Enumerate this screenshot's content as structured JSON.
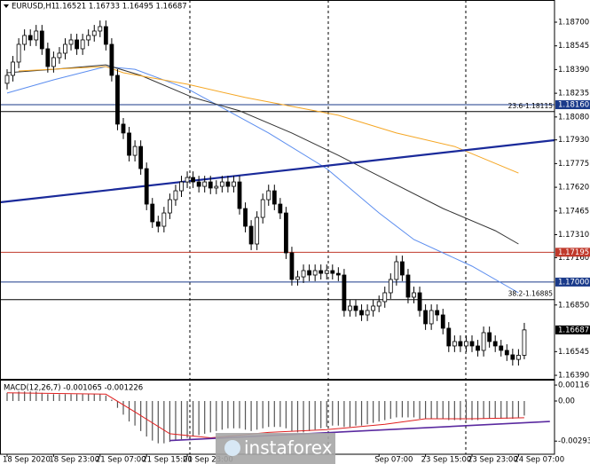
{
  "chart_data": {
    "type": "candlestick",
    "symbol": "EURUSD,H1",
    "ohlc_label": "1.16521 1.16733 1.16495 1.16687",
    "open": [
      1.183,
      1.18352,
      1.18439,
      1.18555,
      1.18613,
      1.18584,
      1.18642,
      1.18526,
      1.1841,
      1.18468,
      1.18497,
      1.18555,
      1.18584,
      1.18526,
      1.18584,
      1.18613,
      1.18642,
      1.18671,
      1.18555,
      1.18352,
      1.18033,
      1.17975,
      1.17829,
      1.17887,
      1.17742,
      1.1751,
      1.17394,
      1.17365,
      1.17452,
      1.17539,
      1.17597,
      1.17655,
      1.17684,
      1.17655,
      1.17626,
      1.17655,
      1.17615,
      1.17626,
      1.17655,
      1.17626,
      1.17655,
      1.17481,
      1.17365,
      1.17249,
      1.17423,
      1.17539,
      1.17597,
      1.1751,
      1.17452,
      1.17191,
      1.17017,
      1.17034,
      1.17075,
      1.17046,
      1.17075,
      1.17057,
      1.17075,
      1.17057,
      1.17046,
      1.16814,
      1.16843,
      1.16814,
      1.16785,
      1.16814,
      1.16843,
      1.16872,
      1.1693,
      1.17017,
      1.17133,
      1.17046,
      1.16901,
      1.1693,
      1.16814,
      1.16727,
      1.16814,
      1.16785,
      1.16698,
      1.16582,
      1.16611,
      1.16582,
      1.16611,
      1.16582,
      1.16553,
      1.16669,
      1.16611,
      1.16582,
      1.16553,
      1.16524,
      1.16494,
      1.16521
    ],
    "high": [
      1.18392,
      1.18479,
      1.18595,
      1.18653,
      1.18653,
      1.18682,
      1.18682,
      1.18566,
      1.18508,
      1.18537,
      1.18595,
      1.18624,
      1.18624,
      1.18624,
      1.18653,
      1.18682,
      1.18711,
      1.18711,
      1.18595,
      1.18392,
      1.18073,
      1.18015,
      1.17927,
      1.17927,
      1.17782,
      1.1755,
      1.17434,
      1.17492,
      1.17579,
      1.17637,
      1.17695,
      1.17724,
      1.17724,
      1.17695,
      1.17695,
      1.17695,
      1.17666,
      1.17695,
      1.17695,
      1.17695,
      1.17695,
      1.17521,
      1.17405,
      1.17463,
      1.17579,
      1.17637,
      1.17637,
      1.1755,
      1.17492,
      1.17231,
      1.17074,
      1.17115,
      1.17115,
      1.17115,
      1.17115,
      1.17115,
      1.17115,
      1.17097,
      1.17086,
      1.16883,
      1.16883,
      1.16854,
      1.16854,
      1.16883,
      1.16912,
      1.1697,
      1.17057,
      1.17173,
      1.17173,
      1.17086,
      1.1697,
      1.1697,
      1.16854,
      1.16854,
      1.16854,
      1.16825,
      1.16738,
      1.16651,
      1.16651,
      1.16651,
      1.16651,
      1.16622,
      1.16709,
      1.16709,
      1.16651,
      1.16622,
      1.16593,
      1.16564,
      1.16561,
      1.16733
    ],
    "low": [
      1.1826,
      1.18312,
      1.18399,
      1.18515,
      1.18544,
      1.18544,
      1.18486,
      1.1837,
      1.1837,
      1.18428,
      1.18457,
      1.18515,
      1.18486,
      1.18486,
      1.18544,
      1.18573,
      1.18602,
      1.18515,
      1.18312,
      1.17993,
      1.17935,
      1.17789,
      1.17789,
      1.17702,
      1.1747,
      1.17354,
      1.17325,
      1.17325,
      1.17412,
      1.17499,
      1.17557,
      1.17615,
      1.17615,
      1.17586,
      1.17586,
      1.17575,
      1.17575,
      1.17586,
      1.17586,
      1.17586,
      1.17441,
      1.17325,
      1.17209,
      1.17209,
      1.17383,
      1.17499,
      1.1747,
      1.17412,
      1.17151,
      1.16977,
      1.16977,
      1.16994,
      1.17006,
      1.17006,
      1.17017,
      1.17017,
      1.17017,
      1.17006,
      1.16774,
      1.16774,
      1.16774,
      1.16745,
      1.16745,
      1.16774,
      1.16803,
      1.16832,
      1.1689,
      1.16977,
      1.17006,
      1.16861,
      1.16861,
      1.16774,
      1.16687,
      1.16687,
      1.16745,
      1.16658,
      1.16542,
      1.16542,
      1.16542,
      1.16542,
      1.16542,
      1.16513,
      1.16513,
      1.16571,
      1.16542,
      1.16513,
      1.16484,
      1.16454,
      1.16454,
      1.16495
    ],
    "close": [
      1.18352,
      1.18439,
      1.18555,
      1.18613,
      1.18584,
      1.18642,
      1.18526,
      1.1841,
      1.18468,
      1.18497,
      1.18555,
      1.18584,
      1.18526,
      1.18584,
      1.18613,
      1.18642,
      1.18671,
      1.18555,
      1.18352,
      1.18033,
      1.17975,
      1.17829,
      1.17887,
      1.17742,
      1.1751,
      1.17394,
      1.17365,
      1.17452,
      1.17539,
      1.17597,
      1.17655,
      1.17684,
      1.17655,
      1.17626,
      1.17655,
      1.17615,
      1.17626,
      1.17655,
      1.17626,
      1.17655,
      1.17481,
      1.17365,
      1.17249,
      1.17423,
      1.17539,
      1.17597,
      1.1751,
      1.17452,
      1.17191,
      1.17017,
      1.17034,
      1.17075,
      1.17046,
      1.17075,
      1.17057,
      1.17075,
      1.17057,
      1.17046,
      1.16814,
      1.16843,
      1.16814,
      1.16785,
      1.16814,
      1.16843,
      1.16872,
      1.1693,
      1.17017,
      1.17133,
      1.17046,
      1.16901,
      1.1693,
      1.16814,
      1.16727,
      1.16814,
      1.16785,
      1.16698,
      1.16582,
      1.16611,
      1.16582,
      1.16611,
      1.16582,
      1.16553,
      1.16669,
      1.16611,
      1.16582,
      1.16553,
      1.16524,
      1.16494,
      1.16521,
      1.16687
    ],
    "up_color": "#ffffff",
    "down_color": "#000000",
    "ylim": [
      1.16367,
      1.18816
    ],
    "yticks": [
      {
        "value": 1.187,
        "label": "1.18700"
      },
      {
        "value": 1.18545,
        "label": "1.18545"
      },
      {
        "value": 1.1839,
        "label": "1.18390"
      },
      {
        "value": 1.18235,
        "label": "1.18235"
      },
      {
        "value": 1.1808,
        "label": "1.18080"
      },
      {
        "value": 1.1793,
        "label": "1.17930"
      },
      {
        "value": 1.17775,
        "label": "1.17775"
      },
      {
        "value": 1.1762,
        "label": "1.17620"
      },
      {
        "value": 1.17465,
        "label": "1.17465"
      },
      {
        "value": 1.1731,
        "label": "1.17310"
      },
      {
        "value": 1.1716,
        "label": "1.17160"
      },
      {
        "value": 1.1685,
        "label": "1.16850"
      },
      {
        "value": 1.16545,
        "label": "1.16545"
      },
      {
        "value": 1.1639,
        "label": "1.16390"
      }
    ],
    "xticks": [
      {
        "value": 0,
        "label": "18 Sep 2020"
      },
      {
        "value": 8,
        "label": "18 Sep 23:00"
      },
      {
        "value": 16,
        "label": "21 Sep 07:00"
      },
      {
        "value": 24,
        "label": "21 Sep 15:00"
      },
      {
        "value": 31,
        "label": "21 Sep 23:00"
      },
      {
        "value": 64,
        "label": "Sep 07:00"
      },
      {
        "value": 72,
        "label": "23 Sep 15:00"
      },
      {
        "value": 80,
        "label": "23 Sep 23:00"
      },
      {
        "value": 88,
        "label": "24 Sep 07:00"
      }
    ],
    "moving_averages": [
      {
        "color": "#5b8def",
        "x": [
          0,
          8,
          17,
          22,
          31,
          38,
          45,
          55,
          64,
          70,
          80,
          88
        ],
        "values": [
          1.18236,
          1.18323,
          1.1841,
          1.18392,
          1.18265,
          1.1812,
          1.17975,
          1.17742,
          1.17452,
          1.17278,
          1.17104,
          1.1693
        ]
      },
      {
        "color": "#333333",
        "x": [
          0,
          8,
          17,
          23,
          32,
          40,
          49,
          57,
          66,
          75,
          84,
          88
        ],
        "values": [
          1.18369,
          1.18392,
          1.18421,
          1.18352,
          1.18207,
          1.1812,
          1.17975,
          1.17829,
          1.17655,
          1.17481,
          1.17336,
          1.17249
        ]
      },
      {
        "color": "#f5a623",
        "x": [
          2,
          17,
          20,
          31,
          41,
          57,
          67,
          77,
          88
        ],
        "values": [
          1.18381,
          1.1841,
          1.18369,
          1.18294,
          1.18207,
          1.18091,
          1.17975,
          1.17887,
          1.17713
        ]
      }
    ],
    "trendline": {
      "color": "#1a2a9a",
      "x": [
        -1.2,
        94.2
      ],
      "values": [
        1.17522,
        1.17928
      ]
    },
    "levels": [
      {
        "value": 1.1816,
        "label": "1.18160",
        "color": "#1a3a8a"
      },
      {
        "value": 1.17195,
        "label": "1.17195",
        "color": "#c0392b"
      },
      {
        "value": 1.17,
        "label": "1.17000",
        "color": "#1a3a8a"
      }
    ],
    "fib_levels": [
      {
        "value": 1.18115,
        "label": "23.6-1.18115"
      },
      {
        "value": 1.16885,
        "label": "38.2-1.16885"
      }
    ],
    "last_price": {
      "value": 1.16687,
      "label": "1.16687"
    },
    "watermark": "instaforex",
    "macd": {
      "title": "MACD(12,26,7) -0.001065 -0.001226",
      "values": [
        0.0006,
        0.0006,
        0.0007,
        0.0007,
        0.0007,
        0.0007,
        0.0006,
        0.0005,
        0.0005,
        0.0005,
        0.0005,
        0.0005,
        0.0005,
        0.0005,
        0.0005,
        0.0005,
        0.0005,
        0.0004,
        0.0001,
        -0.0005,
        -0.001,
        -0.0015,
        -0.0018,
        -0.0022,
        -0.0026,
        -0.0029,
        -0.0031,
        -0.0031,
        -0.003,
        -0.0029,
        -0.0028,
        -0.0027,
        -0.0026,
        -0.0025,
        -0.0024,
        -0.0023,
        -0.0022,
        -0.0021,
        -0.002,
        -0.002,
        -0.002,
        -0.0021,
        -0.0022,
        -0.0021,
        -0.002,
        -0.0019,
        -0.0019,
        -0.0019,
        -0.002,
        -0.0022,
        -0.0023,
        -0.0023,
        -0.0022,
        -0.0021,
        -0.002,
        -0.0019,
        -0.0018,
        -0.0018,
        -0.0019,
        -0.0019,
        -0.0018,
        -0.0018,
        -0.0017,
        -0.0016,
        -0.0015,
        -0.0014,
        -0.0013,
        -0.0012,
        -0.0012,
        -0.0012,
        -0.0012,
        -0.0013,
        -0.0013,
        -0.0013,
        -0.0013,
        -0.0013,
        -0.0014,
        -0.0014,
        -0.0014,
        -0.0014,
        -0.0014,
        -0.0014,
        -0.0013,
        -0.0013,
        -0.0013,
        -0.0013,
        -0.0013,
        -0.0013,
        -0.0012,
        -0.001065
      ],
      "color": "#555555",
      "signal": {
        "color": "#e02020",
        "x": [
          0,
          17,
          22,
          28,
          35,
          45,
          55,
          65,
          72,
          80,
          89
        ],
        "values": [
          0.0006,
          0.0005,
          -0.0008,
          -0.0024,
          -0.0027,
          -0.0023,
          -0.0021,
          -0.0017,
          -0.0013,
          -0.0013,
          -0.001226
        ]
      },
      "trendline": {
        "color": "#5a2aa0",
        "x": [
          28,
          93.4
        ],
        "values": [
          -0.0029,
          -0.0015
        ]
      },
      "ylim": [
        -0.0039,
        0.00156
      ],
      "yticks": [
        {
          "value": 0.001167,
          "label": "0.001167"
        },
        {
          "value": 0,
          "label": "0.00"
        },
        {
          "value": -0.002938,
          "label": "-0.002938"
        }
      ]
    }
  }
}
